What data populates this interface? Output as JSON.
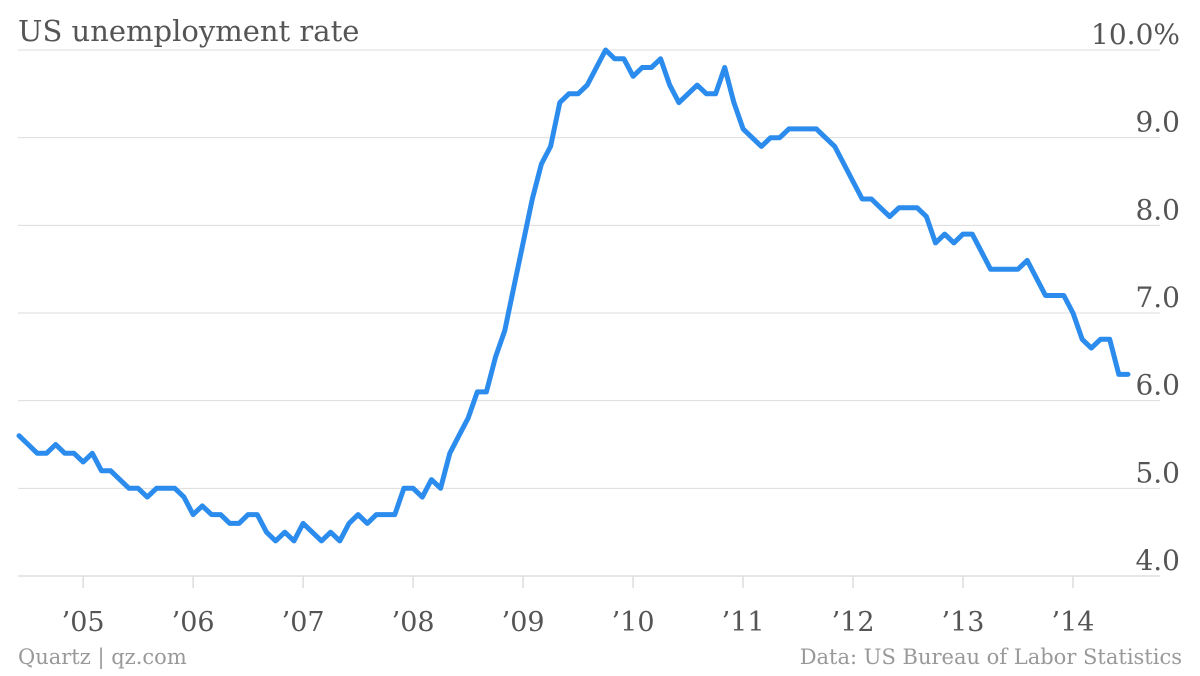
{
  "title": "US unemployment rate",
  "source_left": "Quartz | qz.com",
  "source_right": "Data: US Bureau of Labor Statistics",
  "colors": {
    "line": "#2B8CEE",
    "grid": "#dddddd",
    "text": "#555555",
    "footer": "#999999"
  },
  "chart_data": {
    "type": "line",
    "title": "US unemployment rate",
    "xlabel": "",
    "ylabel": "",
    "ylim": [
      4.0,
      10.0
    ],
    "y_ticks": [
      "10.0%",
      "9.0",
      "8.0",
      "7.0",
      "6.0",
      "5.0",
      "4.0"
    ],
    "x_ticks": [
      "’05",
      "’06",
      "’07",
      "’08",
      "’09",
      "’10",
      "’11",
      "’12",
      "’13",
      "’14"
    ],
    "grid": true,
    "series": [
      {
        "name": "",
        "start": "2004-06",
        "frequency": "monthly",
        "values": [
          5.6,
          5.5,
          5.4,
          5.4,
          5.5,
          5.4,
          5.4,
          5.3,
          5.4,
          5.2,
          5.2,
          5.1,
          5.0,
          5.0,
          4.9,
          5.0,
          5.0,
          5.0,
          4.9,
          4.7,
          4.8,
          4.7,
          4.7,
          4.6,
          4.6,
          4.7,
          4.7,
          4.5,
          4.4,
          4.5,
          4.4,
          4.6,
          4.5,
          4.4,
          4.5,
          4.4,
          4.6,
          4.7,
          4.6,
          4.7,
          4.7,
          4.7,
          5.0,
          5.0,
          4.9,
          5.1,
          5.0,
          5.4,
          5.6,
          5.8,
          6.1,
          6.1,
          6.5,
          6.8,
          7.3,
          7.8,
          8.3,
          8.7,
          8.9,
          9.4,
          9.5,
          9.5,
          9.6,
          9.8,
          10.0,
          9.9,
          9.9,
          9.7,
          9.8,
          9.8,
          9.9,
          9.6,
          9.4,
          9.5,
          9.6,
          9.5,
          9.5,
          9.8,
          9.4,
          9.1,
          9.0,
          8.9,
          9.0,
          9.0,
          9.1,
          9.1,
          9.1,
          9.1,
          9.0,
          8.9,
          8.7,
          8.5,
          8.3,
          8.3,
          8.2,
          8.1,
          8.2,
          8.2,
          8.2,
          8.1,
          7.8,
          7.9,
          7.8,
          7.9,
          7.9,
          7.7,
          7.5,
          7.5,
          7.5,
          7.5,
          7.6,
          7.4,
          7.2,
          7.2,
          7.2,
          7.0,
          6.7,
          6.6,
          6.7,
          6.7,
          6.3,
          6.3
        ]
      }
    ]
  }
}
